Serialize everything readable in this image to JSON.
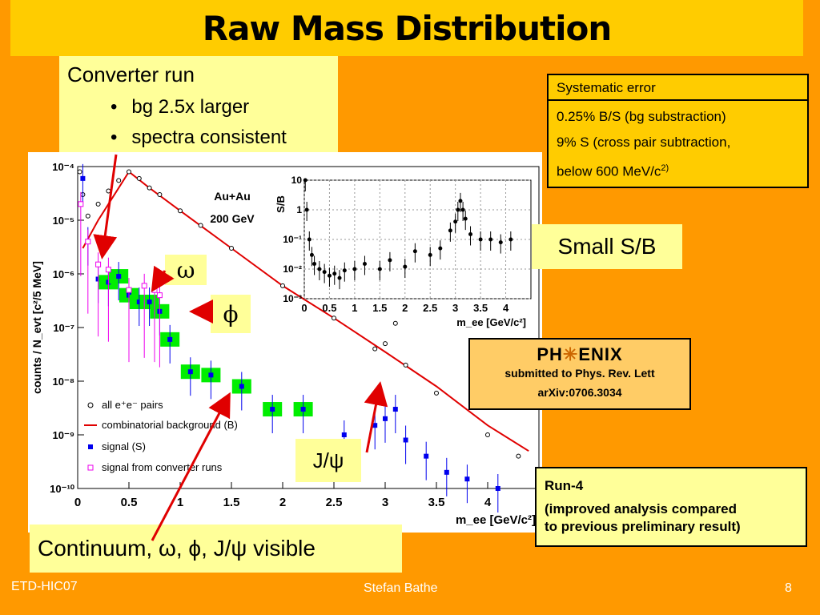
{
  "slide": {
    "title": "Raw Mass Distribution",
    "footer_left": "ETD-HIC07",
    "footer_center": "Stefan Bathe",
    "footer_right": "8"
  },
  "converter_note": {
    "heading": "Converter run",
    "bullets": [
      "bg 2.5x larger",
      "spectra consistent"
    ]
  },
  "systematic": {
    "header": "Systematic error",
    "lines": [
      "0.25% B/S (bg substraction)",
      "9% S (cross pair subtraction,",
      "below 600 MeV/c"
    ],
    "superscript": "2)"
  },
  "small_sb": "Small S/B",
  "phenix_box": {
    "logo_left": "PH",
    "logo_right": "ENIX",
    "line1": "submitted to Phys. Rev. Lett",
    "line2": "arXiv:0706.3034"
  },
  "run4": {
    "title": "Run-4",
    "desc1": "(improved analysis compared",
    "desc2": "to previous preliminary result)"
  },
  "labels": {
    "omega": "ω",
    "phi": "ϕ",
    "jpsi": "J/ψ",
    "continuum": "Continuum, ω, ϕ, J/ψ visible"
  },
  "chart_data": [
    {
      "type": "scatter",
      "ylabel": "counts / N_evt [c²/5 MeV]",
      "xlabel": "m_ee [GeV/c²]",
      "annotation": [
        "Au+Au",
        "200 GeV"
      ],
      "log_y": true,
      "xlim": [
        0,
        4.5
      ],
      "ylim": [
        1e-10,
        0.0001
      ],
      "x_ticks": [
        "0",
        "0.5",
        "1",
        "1.5",
        "2",
        "2.5",
        "3",
        "3.5",
        "4"
      ],
      "y_ticks": [
        "10⁻¹⁰",
        "10⁻⁹",
        "10⁻⁸",
        "10⁻⁷",
        "10⁻⁶",
        "10⁻⁵",
        "10⁻⁴"
      ],
      "legend": [
        "all e⁺e⁻ pairs",
        "combinatorial background (B)",
        "signal (S)",
        "signal from converter runs"
      ],
      "legend_position": "bottom-left",
      "series": [
        {
          "name": "all e⁺e⁻ pairs",
          "x": [
            0.02,
            0.05,
            0.1,
            0.2,
            0.3,
            0.4,
            0.5,
            0.6,
            0.7,
            0.8,
            1.0,
            1.2,
            1.5,
            2.0,
            2.5,
            2.9,
            3.0,
            3.1,
            3.2,
            3.5,
            4.0,
            4.3
          ],
          "y": [
            8e-05,
            3e-05,
            1.2e-05,
            2e-05,
            3.5e-05,
            5.5e-05,
            8e-05,
            6e-05,
            4e-05,
            3e-05,
            1.5e-05,
            8e-06,
            3e-06,
            6e-07,
            1.5e-07,
            4e-08,
            5e-08,
            1.2e-07,
            2e-08,
            6e-09,
            1e-09,
            4e-10
          ]
        },
        {
          "name": "combinatorial background (B)",
          "x": [
            0.05,
            0.2,
            0.4,
            0.5,
            0.7,
            1.0,
            1.5,
            2.0,
            2.5,
            3.0,
            3.5,
            4.0,
            4.4
          ],
          "y": [
            3e-06,
            1e-05,
            4e-05,
            8e-05,
            4e-05,
            1.5e-05,
            3e-06,
            6e-07,
            1.5e-07,
            3.5e-08,
            8e-09,
            1.5e-09,
            5e-10
          ]
        },
        {
          "name": "signal (S)",
          "x": [
            0.05,
            0.1,
            0.2,
            0.3,
            0.4,
            0.5,
            0.6,
            0.7,
            0.8,
            0.9,
            1.1,
            1.3,
            1.6,
            1.9,
            2.2,
            2.6,
            2.9,
            3.0,
            3.1,
            3.2,
            3.4,
            3.6,
            3.8,
            4.1
          ],
          "y": [
            6e-05,
            4e-06,
            8e-07,
            7e-07,
            9e-07,
            4e-07,
            3e-07,
            3e-07,
            2e-07,
            6e-08,
            1.5e-08,
            1.3e-08,
            8e-09,
            3e-09,
            3e-09,
            1e-09,
            1.5e-09,
            2e-09,
            3e-09,
            8e-10,
            4e-10,
            2e-10,
            1.5e-10,
            1e-10
          ]
        },
        {
          "name": "signal from converter runs",
          "x": [
            0.03,
            0.1,
            0.2,
            0.3,
            0.5,
            0.65,
            0.75,
            0.8
          ],
          "y": [
            2e-05,
            4e-06,
            1.5e-06,
            1.2e-06,
            5e-07,
            6e-07,
            5e-07,
            4e-07
          ]
        }
      ]
    },
    {
      "type": "scatter",
      "ylabel": "S/B",
      "xlabel": "m_ee [GeV/c²]",
      "log_y": true,
      "xlim": [
        0,
        4.5
      ],
      "ylim": [
        0.001,
        10
      ],
      "x_ticks": [
        "0",
        "0.5",
        "1",
        "1.5",
        "2",
        "2.5",
        "3",
        "3.5",
        "4"
      ],
      "y_ticks": [
        "10⁻³",
        "10⁻²",
        "10⁻¹",
        "1",
        "10"
      ],
      "series": [
        {
          "x": [
            0.02,
            0.05,
            0.1,
            0.15,
            0.2,
            0.3,
            0.4,
            0.5,
            0.6,
            0.7,
            0.8,
            1.0,
            1.2,
            1.5,
            1.7,
            2.0,
            2.2,
            2.5,
            2.7,
            2.9,
            3.0,
            3.05,
            3.1,
            3.15,
            3.2,
            3.3,
            3.5,
            3.7,
            3.9,
            4.1
          ],
          "y": [
            10,
            1,
            0.1,
            0.03,
            0.015,
            0.01,
            0.008,
            0.006,
            0.007,
            0.005,
            0.009,
            0.01,
            0.015,
            0.01,
            0.02,
            0.012,
            0.04,
            0.03,
            0.05,
            0.2,
            0.4,
            1.0,
            2.0,
            1.0,
            0.5,
            0.15,
            0.1,
            0.1,
            0.08,
            0.1
          ]
        }
      ]
    }
  ]
}
